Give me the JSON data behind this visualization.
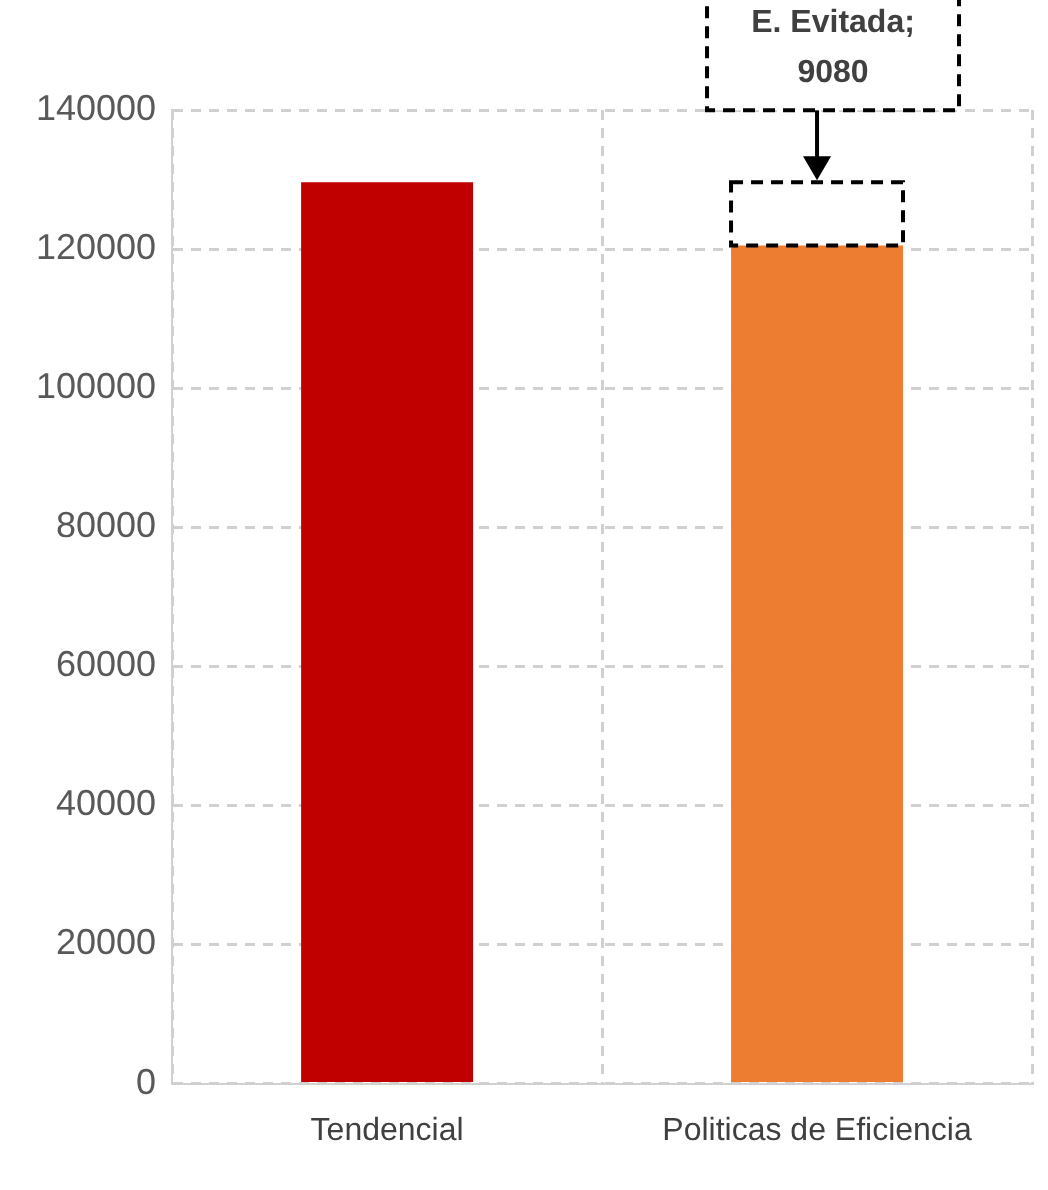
{
  "chart_data": {
    "type": "bar",
    "stacked": true,
    "categories": [
      "Tendencial",
      "Politicas de Eficiencia"
    ],
    "series": [
      {
        "colors": [
          "#c00000",
          "#ed7d31"
        ],
        "values": [
          129600,
          120520
        ]
      },
      {
        "color": "#ffffff",
        "values": [
          null,
          9080
        ],
        "line_style": "dashed"
      }
    ],
    "ylim": [
      0,
      140000
    ],
    "yticks": [
      0,
      20000,
      40000,
      60000,
      80000,
      100000,
      120000,
      140000
    ],
    "grid": true,
    "legend": false,
    "annotations": [
      {
        "text": "E. Evitada; 9080",
        "x": "Politicas de Eficiencia",
        "y": 129600
      }
    ]
  }
}
